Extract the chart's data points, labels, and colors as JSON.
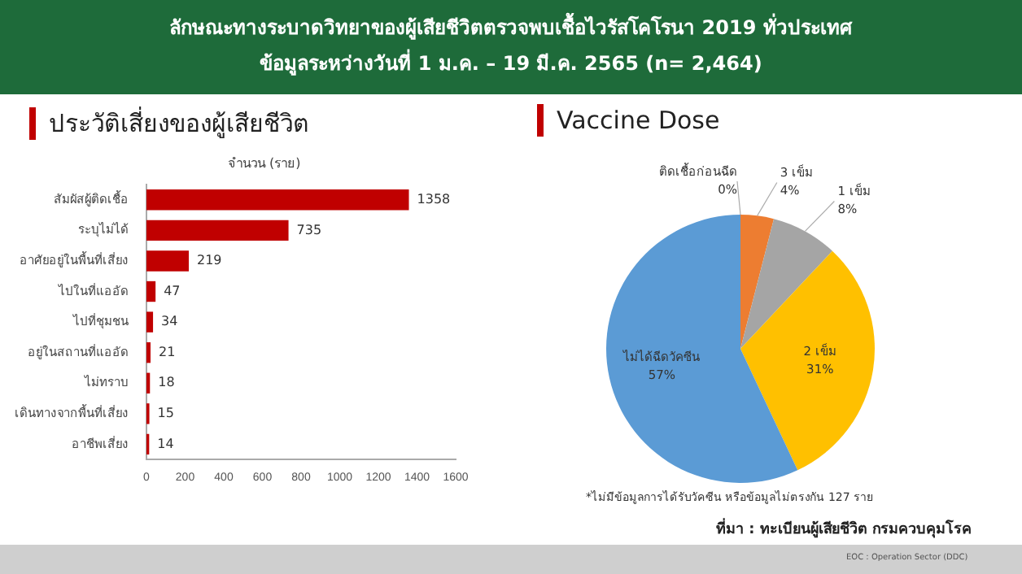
{
  "chart_data": [
    {
      "type": "bar",
      "orientation": "horizontal",
      "title": "ประวัติเสี่ยงของผู้เสียชีวิต",
      "xlabel": "จำนวน (ราย)",
      "annotations": [
        "ลักษณะทางระบาดวิทยาของผู้เสียชีวิตตรวจพบเชื้อไวรัสโคโรนา 2019 ทั่วประเทศ",
        "ข้อมูลระหว่างวันที่ 1 ม.ค. – 19 มี.ค. 2565 (n= 2,464)"
      ],
      "categories": [
        "สัมผัสผู้ติดเชื้อ",
        "ระบุไม่ได้",
        "อาศัยอยู่ในพื้นที่เสี่ยง",
        "ไปในที่แออัด",
        "ไปที่ชุมชน",
        "อยู่ในสถานที่แออัด",
        "ไม่ทราบ",
        "เดินทางจากพื้นที่เสี่ยง",
        "อาชีพเสี่ยง"
      ],
      "values": [
        1358,
        735,
        219,
        47,
        34,
        21,
        18,
        15,
        14
      ],
      "color": "#c00000",
      "xlim": [
        0,
        1600
      ],
      "xticks": [
        0,
        200,
        400,
        600,
        800,
        1000,
        1200,
        1400,
        1600
      ],
      "grid": false,
      "data_labels": true,
      "legend": false
    },
    {
      "type": "pie",
      "title": "Vaccine Dose",
      "categories": [
        "ติดเชื้อก่อนฉีด",
        "3 เข็ม",
        "1 เข็ม",
        "2 เข็ม",
        "ไม่ได้ฉีดวัคซีน"
      ],
      "values": [
        0,
        4,
        8,
        31,
        57
      ],
      "colors": [
        "#264478",
        "#ed7d31",
        "#a5a5a5",
        "#ffc000",
        "#5b9bd5"
      ],
      "value_labels": [
        "0%",
        "4%",
        "8%",
        "31%",
        "57%"
      ],
      "legend": false,
      "annotations": [
        "*ไม่มีข้อมูลการได้รับวัคซีน หรือข้อมูลไม่ตรงกัน 127 ราย",
        "ที่มา : ทะเบียนผู้เสียชีวิต กรมควบคุมโรค",
        "EOC : Operation Sector (DDC)"
      ]
    }
  ]
}
